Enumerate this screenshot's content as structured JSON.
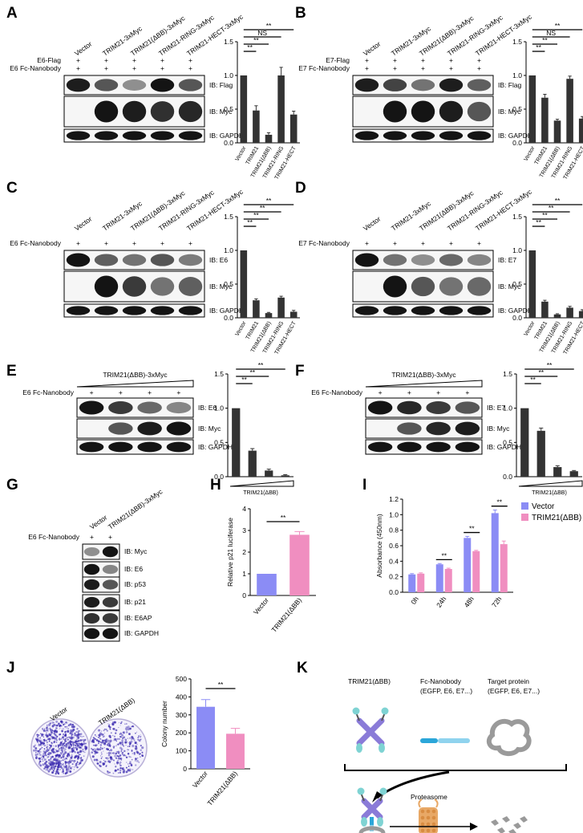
{
  "panels": {
    "A": "A",
    "B": "B",
    "C": "C",
    "D": "D",
    "E": "E",
    "F": "F",
    "G": "G",
    "H": "H",
    "I": "I",
    "J": "J",
    "K": "K"
  },
  "lanes_five": [
    "Vector",
    "TRIM21-3xMyc",
    "TRIM21(ΔBB)-3xMyc",
    "TRIM21-RING-3xMyc",
    "TRIM21-HECT-3xMyc"
  ],
  "bar_cats_five": [
    "Vector",
    "TRIM21",
    "TRIM21(ΔBB)",
    "TRIM21-RING",
    "TRIM21-HECT"
  ],
  "plus": "+",
  "A": {
    "treat": [
      "E6-Flag",
      "E6 Fc-Nanobody"
    ],
    "ib": [
      "IB: Flag",
      "IB: Myc",
      "IB: GAPDH"
    ],
    "sig": [
      "**",
      "**",
      "NS",
      "**"
    ]
  },
  "B": {
    "treat": [
      "E7-Flag",
      "E7 Fc-Nanobody"
    ],
    "ib": [
      "IB: Flag",
      "IB: Myc",
      "IB: GAPDH"
    ],
    "sig": [
      "**",
      "**",
      "NS",
      "**"
    ]
  },
  "C": {
    "treat": [
      "E6 Fc-Nanobody"
    ],
    "ib": [
      "IB: E6",
      "IB: Myc",
      "IB: GAPDH"
    ],
    "sig": [
      "**",
      "**",
      "**",
      "**"
    ]
  },
  "D": {
    "treat": [
      "E7 Fc-Nanobody"
    ],
    "ib": [
      "IB: E7",
      "IB: Myc",
      "IB: GAPDH"
    ],
    "sig": [
      "**",
      "**",
      "**",
      "**"
    ]
  },
  "E": {
    "title": "TRIM21(ΔBB)-3xMyc",
    "treat": [
      "E6 Fc-Nanobody"
    ],
    "ib": [
      "IB: E6",
      "IB: Myc",
      "IB: GAPDH"
    ],
    "xlabel": "TRIM21(ΔBB)",
    "sig": [
      "**",
      "**",
      "**"
    ]
  },
  "F": {
    "title": "TRIM21(ΔBB)-3xMyc",
    "treat": [
      "E6 Fc-Nanobody"
    ],
    "ib": [
      "IB: E7",
      "IB: Myc",
      "IB: GAPDH"
    ],
    "xlabel": "TRIM21(ΔBB)",
    "sig": [
      "**",
      "**",
      "**"
    ]
  },
  "G": {
    "lanes": [
      "Vector",
      "TRIM21(ΔBB)-3xMyc"
    ],
    "treat": [
      "E6 Fc-Nanobody"
    ],
    "ib": [
      "IB: Myc",
      "IB: E6",
      "IB: p53",
      "IB: p21",
      "IB: E6AP",
      "IB: GAPDH"
    ]
  },
  "H": {
    "sig": "**"
  },
  "I": {
    "sig": [
      "**",
      "**",
      "**"
    ]
  },
  "J": {
    "plate_labels": [
      "Vector",
      "TRIM21(ΔBB)"
    ],
    "sig": "**"
  },
  "K": {
    "trim_label": "TRIM21(ΔBB)",
    "nb_label": "Fc-Nanobody",
    "nb_sub": "(EGFP, E6, E7...)",
    "target_label": "Target protein",
    "target_sub": "(EGFP, E6, E7...)",
    "proteasome": "Proteasome"
  },
  "chart_data": [
    {
      "id": "A",
      "type": "bar",
      "categories": [
        "Vector",
        "TRIM21",
        "TRIM21(ΔBB)",
        "TRIM21-RING",
        "TRIM21-HECT"
      ],
      "values": [
        1.0,
        0.48,
        0.12,
        1.0,
        0.42
      ],
      "errors": [
        0,
        0.07,
        0.03,
        0.12,
        0.05
      ],
      "ylim": [
        0,
        1.5
      ],
      "yticks": [
        "0.0",
        "0.5",
        "1.0",
        "1.5"
      ],
      "title": "",
      "xlabel": "",
      "ylabel": ""
    },
    {
      "id": "B",
      "type": "bar",
      "categories": [
        "Vector",
        "TRIM21",
        "TRIM21(ΔBB)",
        "TRIM21-RING",
        "TRIM21-HECT"
      ],
      "values": [
        1.0,
        0.67,
        0.33,
        0.95,
        0.36
      ],
      "errors": [
        0,
        0.05,
        0.02,
        0.04,
        0.03
      ],
      "ylim": [
        0,
        1.5
      ],
      "yticks": [
        "0.0",
        "0.5",
        "1.0",
        "1.5"
      ],
      "title": "",
      "xlabel": "",
      "ylabel": ""
    },
    {
      "id": "C",
      "type": "bar",
      "categories": [
        "Vector",
        "TRIM21",
        "TRIM21(ΔBB)",
        "TRIM21-RING",
        "TRIM21-HECT"
      ],
      "values": [
        1.0,
        0.26,
        0.07,
        0.3,
        0.09
      ],
      "errors": [
        0,
        0.02,
        0.01,
        0.02,
        0.02
      ],
      "ylim": [
        0,
        1.5
      ],
      "yticks": [
        "0.0",
        "0.5",
        "1.0",
        "1.5"
      ],
      "title": "",
      "xlabel": "",
      "ylabel": ""
    },
    {
      "id": "D",
      "type": "bar",
      "categories": [
        "Vector",
        "TRIM21",
        "TRIM21(ΔBB)",
        "TRIM21-RING",
        "TRIM21-HECT"
      ],
      "values": [
        1.0,
        0.24,
        0.05,
        0.15,
        0.1
      ],
      "errors": [
        0,
        0.02,
        0.01,
        0.02,
        0.02
      ],
      "ylim": [
        0,
        1.5
      ],
      "yticks": [
        "0.0",
        "0.5",
        "1.0",
        "1.5"
      ],
      "title": "",
      "xlabel": "",
      "ylabel": ""
    },
    {
      "id": "E",
      "type": "bar",
      "categories": [
        "1",
        "2",
        "3",
        "4"
      ],
      "values": [
        1.0,
        0.38,
        0.09,
        0.02
      ],
      "errors": [
        0,
        0.03,
        0.02,
        0.01
      ],
      "ylim": [
        0,
        1.5
      ],
      "yticks": [
        "0.0",
        "0.5",
        "1.0",
        "1.5"
      ],
      "title": "",
      "xlabel": "TRIM21(ΔBB)",
      "ylabel": ""
    },
    {
      "id": "F",
      "type": "bar",
      "categories": [
        "1",
        "2",
        "3",
        "4"
      ],
      "values": [
        1.0,
        0.67,
        0.14,
        0.08
      ],
      "errors": [
        0,
        0.04,
        0.02,
        0.01
      ],
      "ylim": [
        0,
        1.5
      ],
      "yticks": [
        "0.0",
        "0.5",
        "1.0",
        "1.5"
      ],
      "title": "",
      "xlabel": "TRIM21(ΔBB)",
      "ylabel": ""
    },
    {
      "id": "H",
      "type": "bar",
      "categories": [
        "Vector",
        "TRIM21(ΔBB)"
      ],
      "values": [
        1.0,
        2.8
      ],
      "errors": [
        0,
        0.15
      ],
      "ylim": [
        0,
        4
      ],
      "yticks": [
        "0",
        "1",
        "2",
        "3",
        "4"
      ],
      "title": "",
      "xlabel": "",
      "ylabel": "Relative p21 luciferase"
    },
    {
      "id": "I",
      "type": "bar",
      "categories": [
        "0h",
        "24h",
        "48h",
        "72h"
      ],
      "series": [
        {
          "name": "Vector",
          "values": [
            0.23,
            0.36,
            0.7,
            1.02
          ],
          "errors": [
            0.01,
            0.01,
            0.02,
            0.04
          ]
        },
        {
          "name": "TRIM21(ΔBB)",
          "values": [
            0.24,
            0.3,
            0.53,
            0.62
          ],
          "errors": [
            0.01,
            0.01,
            0.01,
            0.04
          ]
        }
      ],
      "ylim": [
        0,
        1.2
      ],
      "yticks": [
        "0.0",
        "0.2",
        "0.4",
        "0.6",
        "0.8",
        "1.0",
        "1.2"
      ],
      "title": "",
      "xlabel": "",
      "ylabel": "Absorbance (450nm)",
      "legend": "top-right"
    },
    {
      "id": "J",
      "type": "bar",
      "categories": [
        "Vector",
        "TRIM21(ΔBB)"
      ],
      "values": [
        345,
        195
      ],
      "errors": [
        40,
        30
      ],
      "ylim": [
        0,
        500
      ],
      "yticks": [
        "0",
        "100",
        "200",
        "300",
        "400",
        "500"
      ],
      "title": "",
      "xlabel": "",
      "ylabel": "Colony number"
    }
  ],
  "colors": {
    "bar": "#333333",
    "vector": "#8b8cf5",
    "trim": "#f08ec0",
    "colony": "#3b2bb0",
    "teal": "#7fd3d3",
    "purple": "#8a7bd8",
    "orange": "#e8a866",
    "nano_dark": "#2ba6d9",
    "nano_light": "#8fd3ee",
    "grey": "#9a9a9a"
  }
}
